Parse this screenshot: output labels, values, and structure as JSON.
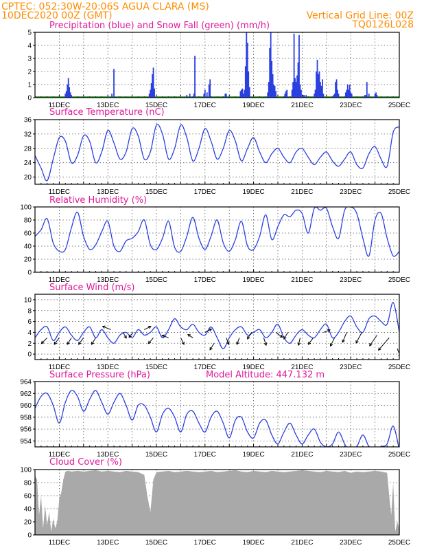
{
  "header": {
    "station": "CPTEC:  052:30W-20:06S  AGUA CLARA (MS)",
    "run": "10DEC2020 00Z (GMT)",
    "grid_note": "Vertical Grid Line: 00Z",
    "code": "TQ0126L028"
  },
  "colors": {
    "header": "#ff8c00",
    "title": "#e0189a",
    "series": "#2a3fe0",
    "snow": "#1a8a1a",
    "cloud": "#a9a9a9",
    "arrow": "#000000"
  },
  "x_ticks": [
    "11DEC",
    "13DEC",
    "15DEC",
    "17DEC",
    "19DEC",
    "21DEC",
    "23DEC",
    "25DEC"
  ],
  "chart_data": [
    {
      "id": "precip",
      "type": "bar",
      "title": "Precipitation (blue) and Snow Fall (green) (mm/h)",
      "x_units": "hours since 10DEC2020 00Z",
      "xlim": [
        0,
        360
      ],
      "ylim": [
        0,
        5
      ],
      "yticks": [
        0,
        1,
        2,
        3,
        4,
        5
      ],
      "series": [
        {
          "name": "Precipitation",
          "points": [
            [
              30,
              0.3
            ],
            [
              31,
              0.5
            ],
            [
              32,
              1.0
            ],
            [
              33,
              1.5
            ],
            [
              34,
              0.8
            ],
            [
              35,
              0.4
            ],
            [
              36,
              0.2
            ],
            [
              76,
              0.3
            ],
            [
              78,
              2.2
            ],
            [
              113,
              0.3
            ],
            [
              114,
              0.6
            ],
            [
              115,
              1.1
            ],
            [
              116,
              1.8
            ],
            [
              117,
              2.3
            ],
            [
              118,
              0.7
            ],
            [
              150,
              0.2
            ],
            [
              153,
              0.3
            ],
            [
              157,
              0.3
            ],
            [
              158,
              3.2
            ],
            [
              167,
              0.3
            ],
            [
              168,
              0.6
            ],
            [
              170,
              0.4
            ],
            [
              172,
              1.0
            ],
            [
              173,
              1.4
            ],
            [
              188,
              0.3
            ],
            [
              189,
              0.3
            ],
            [
              203,
              0.5
            ],
            [
              204,
              0.6
            ],
            [
              205,
              0.7
            ],
            [
              206,
              0.3
            ],
            [
              207,
              0.6
            ],
            [
              208,
              2.4
            ],
            [
              209,
              5.0
            ],
            [
              210,
              4.2
            ],
            [
              211,
              2.0
            ],
            [
              212,
              0.8
            ],
            [
              230,
              0.4
            ],
            [
              231,
              1.2
            ],
            [
              232,
              3.8
            ],
            [
              233,
              5.0
            ],
            [
              234,
              2.8
            ],
            [
              235,
              1.8
            ],
            [
              236,
              1.0
            ],
            [
              237,
              0.9
            ],
            [
              238,
              0.5
            ],
            [
              247,
              0.3
            ],
            [
              248,
              0.5
            ],
            [
              249,
              0.6
            ],
            [
              254,
              0.6
            ],
            [
              255,
              1.2
            ],
            [
              256,
              4.9
            ],
            [
              257,
              1.5
            ],
            [
              258,
              1.2
            ],
            [
              259,
              1.7
            ],
            [
              260,
              2.7
            ],
            [
              261,
              4.8
            ],
            [
              262,
              1.0
            ],
            [
              263,
              0.6
            ],
            [
              265,
              0.2
            ],
            [
              266,
              0.2
            ],
            [
              268,
              0.2
            ],
            [
              276,
              0.3
            ],
            [
              277,
              0.6
            ],
            [
              278,
              2.0
            ],
            [
              279,
              2.9
            ],
            [
              280,
              1.8
            ],
            [
              281,
              2.0
            ],
            [
              282,
              1.2
            ],
            [
              283,
              0.9
            ],
            [
              284,
              1.4
            ],
            [
              285,
              0.3
            ],
            [
              295,
              0.2
            ],
            [
              296,
              0.3
            ],
            [
              297,
              1.2
            ],
            [
              298,
              1.4
            ],
            [
              299,
              0.6
            ],
            [
              300,
              0.3
            ],
            [
              307,
              0.4
            ],
            [
              308,
              0.6
            ],
            [
              309,
              1.0
            ],
            [
              310,
              0.6
            ],
            [
              311,
              1.0
            ],
            [
              312,
              0.4
            ],
            [
              313,
              0.3
            ],
            [
              326,
              0.2
            ],
            [
              327,
              0.2
            ],
            [
              328,
              1.2
            ],
            [
              330,
              0.3
            ],
            [
              336,
              0.3
            ],
            [
              337,
              0.4
            ],
            [
              338,
              0.2
            ]
          ]
        },
        {
          "name": "Snow Fall",
          "points": []
        }
      ]
    },
    {
      "id": "temperature",
      "type": "line",
      "title": "Surface Temperature (nC)",
      "xlim": [
        0,
        360
      ],
      "ylim": [
        18,
        36
      ],
      "yticks": [
        20,
        24,
        28,
        32,
        36
      ],
      "x": [
        0,
        6,
        12,
        18,
        24,
        30,
        36,
        42,
        48,
        54,
        60,
        66,
        72,
        78,
        84,
        90,
        96,
        102,
        108,
        114,
        120,
        126,
        132,
        138,
        144,
        150,
        156,
        162,
        168,
        174,
        180,
        186,
        192,
        198,
        204,
        210,
        216,
        222,
        228,
        234,
        240,
        246,
        252,
        258,
        264,
        270,
        276,
        282,
        288,
        294,
        300,
        306,
        312,
        318,
        324,
        330,
        336,
        342,
        348,
        354,
        360
      ],
      "y": [
        26.0,
        22.5,
        19.0,
        25.0,
        31.0,
        30.0,
        24.0,
        26.0,
        31.5,
        30.0,
        24.0,
        27.0,
        33.0,
        29.5,
        25.0,
        27.0,
        33.5,
        31.5,
        25.0,
        27.0,
        34.5,
        32.0,
        25.0,
        28.0,
        34.5,
        31.0,
        24.5,
        28.0,
        33.5,
        30.0,
        25.0,
        28.0,
        33.0,
        30.0,
        24.5,
        28.0,
        31.0,
        27.0,
        24.0,
        26.5,
        28.0,
        25.5,
        24.0,
        27.0,
        28.0,
        25.5,
        23.5,
        25.5,
        27.0,
        24.5,
        23.0,
        25.0,
        27.0,
        23.5,
        22.5,
        26.5,
        28.5,
        25.0,
        23.0,
        32.5,
        34.0
      ]
    },
    {
      "id": "humidity",
      "type": "line",
      "title": "Relative Humidity (%)",
      "xlim": [
        0,
        360
      ],
      "ylim": [
        0,
        100
      ],
      "yticks": [
        0,
        20,
        40,
        60,
        80,
        100
      ],
      "x": [
        0,
        6,
        12,
        18,
        24,
        30,
        36,
        42,
        48,
        54,
        60,
        66,
        72,
        78,
        84,
        90,
        96,
        102,
        108,
        114,
        120,
        126,
        132,
        138,
        144,
        150,
        156,
        162,
        168,
        174,
        180,
        186,
        192,
        198,
        204,
        210,
        216,
        222,
        228,
        234,
        240,
        246,
        252,
        258,
        264,
        270,
        276,
        282,
        288,
        294,
        300,
        306,
        312,
        318,
        324,
        330,
        336,
        342,
        348,
        354,
        360
      ],
      "y": [
        55,
        65,
        82,
        45,
        32,
        35,
        68,
        92,
        55,
        35,
        42,
        62,
        78,
        40,
        32,
        48,
        52,
        62,
        80,
        42,
        35,
        52,
        78,
        38,
        32,
        55,
        84,
        52,
        35,
        55,
        80,
        45,
        32,
        50,
        78,
        40,
        35,
        55,
        88,
        50,
        70,
        88,
        85,
        95,
        90,
        60,
        98,
        95,
        98,
        70,
        52,
        95,
        100,
        90,
        52,
        25,
        80,
        90,
        52,
        25,
        32
      ]
    },
    {
      "id": "wind",
      "type": "line",
      "title": "Surface Wind (m/s)",
      "xlim": [
        0,
        360
      ],
      "ylim": [
        -1,
        11
      ],
      "yticks": [
        0,
        2,
        4,
        6,
        8,
        10
      ],
      "x": [
        0,
        6,
        12,
        18,
        24,
        30,
        36,
        42,
        48,
        54,
        60,
        66,
        72,
        78,
        84,
        90,
        96,
        102,
        108,
        114,
        120,
        126,
        132,
        138,
        144,
        150,
        156,
        162,
        168,
        174,
        180,
        186,
        192,
        198,
        204,
        210,
        216,
        222,
        228,
        234,
        240,
        246,
        252,
        258,
        264,
        270,
        276,
        282,
        288,
        294,
        300,
        306,
        312,
        318,
        324,
        330,
        336,
        342,
        348,
        354,
        360
      ],
      "y": [
        3.0,
        4.5,
        5.0,
        2.5,
        4.0,
        5.0,
        3.5,
        2.5,
        4.0,
        5.0,
        3.0,
        4.5,
        3.0,
        2.0,
        3.5,
        4.0,
        3.0,
        4.5,
        3.5,
        4.0,
        5.0,
        3.0,
        4.5,
        6.5,
        5.0,
        4.5,
        5.5,
        4.0,
        3.5,
        5.0,
        3.0,
        1.0,
        3.0,
        4.5,
        5.0,
        3.5,
        4.0,
        4.5,
        3.0,
        4.0,
        5.5,
        3.0,
        2.0,
        3.5,
        4.5,
        3.5,
        3.0,
        4.5,
        5.5,
        3.0,
        4.0,
        6.0,
        7.0,
        5.0,
        4.0,
        6.5,
        7.0,
        6.0,
        5.5,
        9.5,
        4.0
      ],
      "vectors": [
        [
          12,
          3,
          -0.7,
          -0.7
        ],
        [
          24,
          3,
          -0.6,
          -0.8
        ],
        [
          36,
          3,
          -0.5,
          -0.8
        ],
        [
          48,
          3,
          -0.6,
          -0.8
        ],
        [
          60,
          3,
          -0.5,
          -0.8
        ],
        [
          75,
          4.5,
          -1.0,
          0.4
        ],
        [
          87,
          4,
          0.4,
          -0.7
        ],
        [
          97,
          4,
          -0.5,
          -0.6
        ],
        [
          108,
          4.5,
          0.8,
          0.4
        ],
        [
          117,
          3,
          -0.6,
          -0.7
        ],
        [
          132,
          3,
          -0.8,
          0.3
        ],
        [
          144,
          3,
          0.4,
          -0.8
        ],
        [
          156,
          3,
          -0.6,
          0.4
        ],
        [
          168,
          4,
          0.8,
          0.4
        ],
        [
          177,
          2,
          -0.5,
          -0.8
        ],
        [
          189,
          3,
          0.3,
          -0.8
        ],
        [
          202,
          3,
          -0.3,
          -0.8
        ],
        [
          214,
          4,
          -0.5,
          -0.8
        ],
        [
          226,
          3,
          0.3,
          -0.9
        ],
        [
          238,
          4,
          0.8,
          -0.6
        ],
        [
          250,
          4,
          -0.5,
          -0.8
        ],
        [
          262,
          3,
          -0.2,
          -0.9
        ],
        [
          275,
          3,
          -0.6,
          -0.8
        ],
        [
          285,
          4,
          0.8,
          0.3
        ],
        [
          296,
          3,
          -0.5,
          -1.0
        ],
        [
          308,
          4,
          -0.5,
          -1.2
        ],
        [
          323,
          4,
          -0.7,
          -1.3
        ],
        [
          338,
          3.5,
          -0.9,
          -1.3
        ],
        [
          350,
          3,
          -1.3,
          -1.5
        ],
        [
          358,
          1,
          0.4,
          -1.0
        ]
      ]
    },
    {
      "id": "pressure",
      "type": "line",
      "title": "Surface Pressure (hPa)",
      "annotation": "Model Altitude: 447.132 m",
      "xlim": [
        0,
        360
      ],
      "ylim": [
        953,
        964
      ],
      "yticks": [
        954,
        956,
        958,
        960,
        962,
        964
      ],
      "x": [
        0,
        6,
        12,
        18,
        24,
        30,
        36,
        42,
        48,
        54,
        60,
        66,
        72,
        78,
        84,
        90,
        96,
        102,
        108,
        114,
        120,
        126,
        132,
        138,
        144,
        150,
        156,
        162,
        168,
        174,
        180,
        186,
        192,
        198,
        204,
        210,
        216,
        222,
        228,
        234,
        240,
        246,
        252,
        258,
        264,
        270,
        276,
        282,
        288,
        294,
        300,
        306,
        312,
        318,
        324,
        330,
        336,
        342,
        348,
        354,
        360
      ],
      "y": [
        959.5,
        961.5,
        962.0,
        960.0,
        957.0,
        960.5,
        962.5,
        961.5,
        959.0,
        961.0,
        962.5,
        960.5,
        958.5,
        960.5,
        962.0,
        960.0,
        957.5,
        960.0,
        960.0,
        958.0,
        955.5,
        958.5,
        959.5,
        958.0,
        955.5,
        958.5,
        959.0,
        957.0,
        955.5,
        958.0,
        959.0,
        957.0,
        954.5,
        957.5,
        958.0,
        955.5,
        954.5,
        957.0,
        957.5,
        955.0,
        953.5,
        955.5,
        957.0,
        955.0,
        953.5,
        955.0,
        956.0,
        953.8,
        953.0,
        953.5,
        955.5,
        953.5,
        952.0,
        953.0,
        955.0,
        953.0,
        952.0,
        953.0,
        953.5,
        956.5,
        952.5
      ]
    },
    {
      "id": "cloud",
      "type": "area",
      "title": "Cloud Cover (%)",
      "xlim": [
        0,
        360
      ],
      "ylim": [
        0,
        100
      ],
      "yticks": [
        0,
        20,
        40,
        60,
        80,
        100
      ],
      "x": [
        0,
        2,
        4,
        6,
        8,
        10,
        12,
        14,
        16,
        18,
        20,
        22,
        24,
        26,
        28,
        30,
        33,
        36,
        42,
        48,
        54,
        60,
        66,
        72,
        78,
        84,
        90,
        96,
        102,
        108,
        111,
        114,
        117,
        120,
        126,
        132,
        138,
        144,
        150,
        156,
        162,
        168,
        174,
        180,
        186,
        192,
        198,
        204,
        210,
        216,
        222,
        228,
        234,
        240,
        246,
        252,
        258,
        264,
        270,
        276,
        282,
        288,
        294,
        300,
        306,
        312,
        318,
        324,
        330,
        336,
        342,
        348,
        350,
        352,
        354,
        356,
        358,
        360
      ],
      "y": [
        90,
        85,
        30,
        60,
        10,
        45,
        15,
        35,
        5,
        25,
        10,
        20,
        55,
        65,
        85,
        97,
        98,
        97,
        98,
        97,
        98,
        99,
        97,
        98,
        97,
        96,
        98,
        97,
        96,
        92,
        60,
        35,
        85,
        96,
        97,
        98,
        96,
        97,
        98,
        97,
        96,
        97,
        98,
        96,
        97,
        98,
        99,
        97,
        96,
        98,
        97,
        96,
        98,
        97,
        96,
        97,
        98,
        99,
        98,
        97,
        96,
        98,
        97,
        96,
        98,
        95,
        97,
        96,
        97,
        98,
        97,
        95,
        60,
        30,
        80,
        5,
        20,
        10
      ]
    }
  ]
}
